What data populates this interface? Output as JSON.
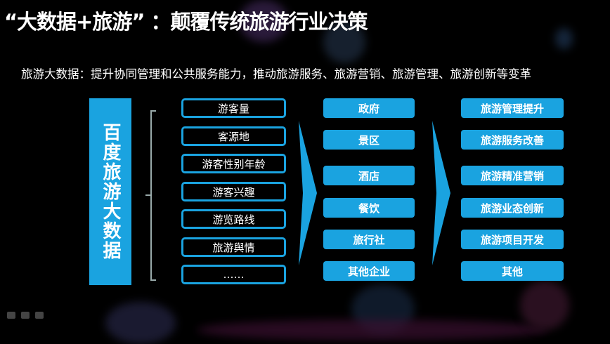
{
  "title": "“大数据+旅游” ：颠覆传统旅游行业决策",
  "subtitle": "旅游大数据：提升协同管理和公共服务能力，推动旅游服务、旅游营销、旅游管理、旅游创新等变革",
  "source": "百度旅游大数据",
  "data_items": [
    "游客量",
    "客源地",
    "游客性别年龄",
    "游客兴趣",
    "游览路线",
    "旅游舆情",
    "……"
  ],
  "users": [
    "政府",
    "景区",
    "酒店",
    "餐饮",
    "旅行社",
    "其他企业"
  ],
  "outcomes": [
    "旅游管理提升",
    "旅游服务改善",
    "旅游精准营销",
    "旅游业态创新",
    "旅游项目开发",
    "其他"
  ],
  "colors": {
    "accent": "#1aa3e0",
    "background": "#000000"
  }
}
